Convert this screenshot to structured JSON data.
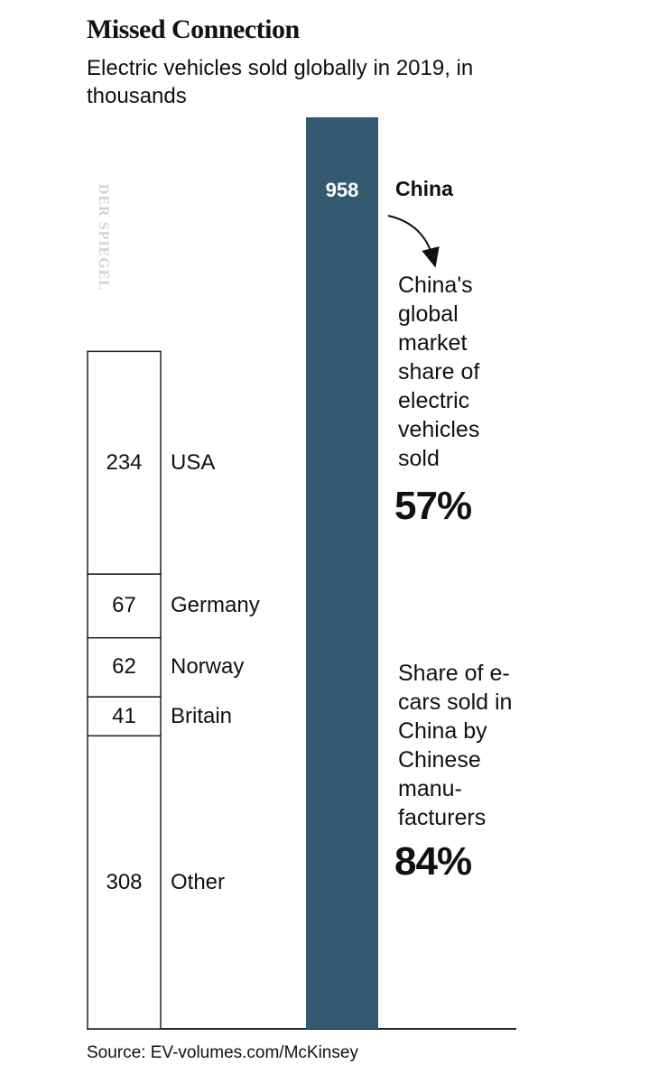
{
  "chart_data": {
    "type": "bar",
    "title": "Missed Connection",
    "subtitle": "Electric vehicles sold globally in 2019, in thousands",
    "categories": [
      "USA",
      "Germany",
      "Norway",
      "Britain",
      "Other",
      "China"
    ],
    "stacked_series": [
      {
        "name": "USA",
        "value": 234
      },
      {
        "name": "Germany",
        "value": 67
      },
      {
        "name": "Norway",
        "value": 62
      },
      {
        "name": "Britain",
        "value": 41
      },
      {
        "name": "Other",
        "value": 308
      }
    ],
    "main_series": {
      "name": "China",
      "value": 958
    },
    "annotations": [
      {
        "text": "China's global market share of electric vehicles sold",
        "value": "57%"
      },
      {
        "text": "Share of e-cars sold in China by Chinese manu- facturers",
        "value": "84%"
      }
    ],
    "colors": {
      "china_bar": "#335a70",
      "other_bars_fill": "#ffffff",
      "outline": "#222222"
    },
    "source": "Source: EV-volumes.com/McKinsey",
    "watermark": "DER SPIEGEL"
  }
}
